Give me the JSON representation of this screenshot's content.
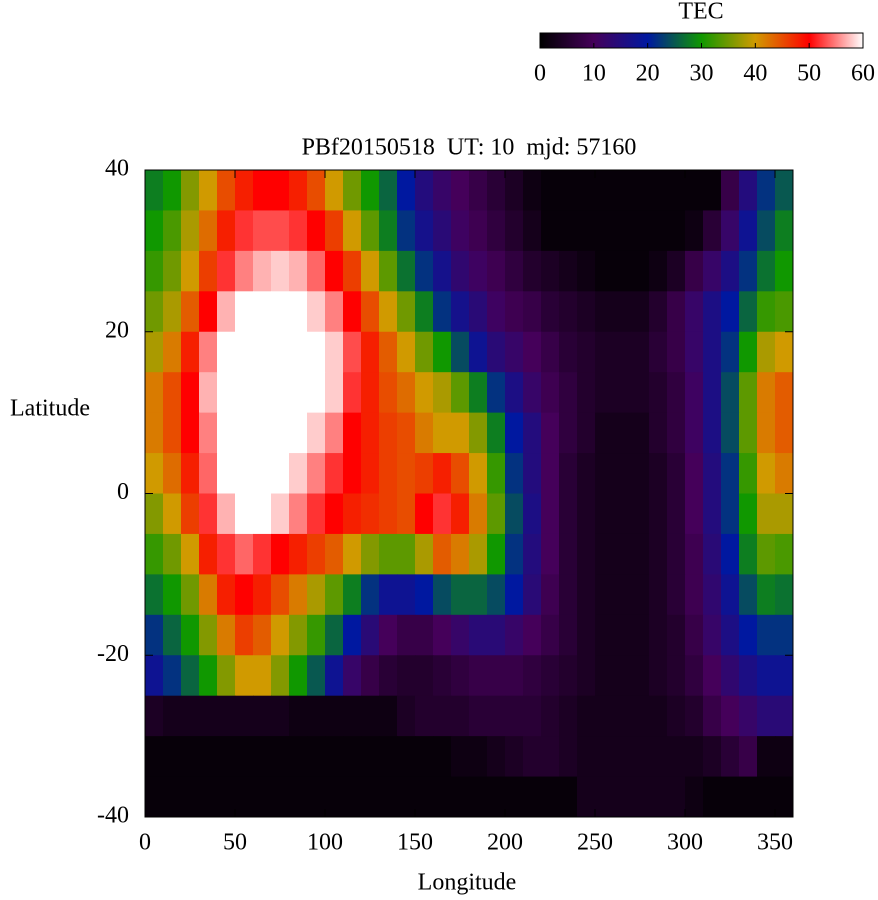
{
  "chart_data": {
    "type": "heatmap",
    "title": "PBf20150518  UT: 10  mjd: 57160",
    "xlabel": "Longitude",
    "ylabel": "Latitude",
    "colorbar_label": "TEC",
    "xlim": [
      0,
      360
    ],
    "xticks": [
      0,
      50,
      100,
      150,
      200,
      250,
      300,
      350
    ],
    "ylim": [
      -40,
      40
    ],
    "yticks": [
      -40,
      -20,
      0,
      20,
      40
    ],
    "zlim": [
      0,
      60
    ],
    "zticks": [
      0,
      10,
      20,
      30,
      40,
      50,
      60
    ],
    "colormap": [
      "#000000",
      "#45005a",
      "#0018a0",
      "#109800",
      "#d09a00",
      "#ff0000",
      "#ffffff"
    ],
    "x": [
      5,
      15,
      25,
      35,
      45,
      55,
      65,
      75,
      85,
      95,
      105,
      115,
      125,
      135,
      145,
      155,
      165,
      175,
      185,
      195,
      205,
      215,
      225,
      235,
      245,
      255,
      265,
      275,
      285,
      295,
      305,
      315,
      325,
      335,
      345,
      355
    ],
    "y": [
      37.5,
      32.5,
      27.5,
      22.5,
      17.5,
      12.5,
      7.5,
      2.5,
      -2.5,
      -7.5,
      -12.5,
      -17.5,
      -22.5,
      -27.5,
      -32.5,
      -37.5
    ],
    "z": [
      [
        28,
        30,
        36,
        40,
        45,
        48,
        50,
        50,
        48,
        45,
        40,
        35,
        30,
        26,
        20,
        15,
        12,
        10,
        8,
        6,
        4,
        2,
        1,
        1,
        1,
        1,
        1,
        1,
        1,
        1,
        1,
        1,
        8,
        15,
        22,
        25
      ],
      [
        30,
        33,
        38,
        43,
        48,
        52,
        53,
        53,
        52,
        50,
        46,
        40,
        34,
        28,
        22,
        17,
        14,
        11,
        9,
        7,
        5,
        3,
        1,
        1,
        1,
        1,
        1,
        1,
        1,
        1,
        2,
        6,
        12,
        18,
        24,
        28
      ],
      [
        32,
        35,
        40,
        46,
        52,
        55,
        57,
        58,
        57,
        54,
        50,
        46,
        40,
        34,
        27,
        22,
        17,
        13,
        11,
        9,
        7,
        5,
        4,
        3,
        2,
        1,
        1,
        1,
        2,
        4,
        8,
        12,
        16,
        22,
        27,
        30
      ],
      [
        35,
        38,
        44,
        50,
        57,
        60,
        60,
        60,
        60,
        58,
        55,
        50,
        45,
        40,
        35,
        28,
        22,
        17,
        14,
        11,
        9,
        8,
        6,
        5,
        4,
        3,
        3,
        3,
        5,
        8,
        12,
        16,
        20,
        26,
        32,
        33
      ],
      [
        38,
        42,
        48,
        55,
        60,
        60,
        60,
        60,
        60,
        60,
        58,
        53,
        48,
        44,
        40,
        35,
        30,
        24,
        18,
        14,
        12,
        10,
        8,
        6,
        5,
        4,
        4,
        4,
        6,
        8,
        12,
        16,
        22,
        30,
        38,
        40
      ],
      [
        42,
        45,
        50,
        57,
        60,
        60,
        60,
        60,
        60,
        60,
        58,
        52,
        48,
        45,
        43,
        40,
        38,
        34,
        28,
        22,
        16,
        12,
        9,
        7,
        5,
        4,
        4,
        4,
        5,
        7,
        11,
        16,
        24,
        34,
        42,
        44
      ],
      [
        42,
        45,
        50,
        55,
        60,
        60,
        60,
        60,
        60,
        58,
        55,
        50,
        48,
        46,
        45,
        42,
        40,
        40,
        36,
        28,
        20,
        15,
        10,
        7,
        5,
        3,
        3,
        3,
        5,
        7,
        11,
        16,
        24,
        34,
        42,
        44
      ],
      [
        40,
        43,
        48,
        54,
        60,
        60,
        60,
        60,
        58,
        55,
        52,
        50,
        48,
        46,
        45,
        46,
        48,
        45,
        40,
        32,
        22,
        15,
        10,
        6,
        4,
        3,
        3,
        3,
        4,
        6,
        10,
        15,
        22,
        32,
        40,
        42
      ],
      [
        36,
        40,
        46,
        52,
        57,
        60,
        60,
        58,
        55,
        52,
        50,
        48,
        47,
        46,
        45,
        50,
        52,
        48,
        42,
        34,
        24,
        16,
        10,
        6,
        4,
        3,
        3,
        3,
        4,
        6,
        10,
        15,
        22,
        30,
        38,
        38
      ],
      [
        32,
        35,
        40,
        48,
        52,
        54,
        52,
        50,
        48,
        46,
        44,
        40,
        36,
        34,
        34,
        38,
        44,
        42,
        38,
        30,
        22,
        15,
        10,
        6,
        4,
        3,
        3,
        3,
        4,
        6,
        9,
        14,
        20,
        28,
        34,
        33
      ],
      [
        27,
        30,
        35,
        42,
        48,
        50,
        48,
        45,
        42,
        38,
        34,
        28,
        22,
        18,
        18,
        20,
        24,
        26,
        26,
        24,
        20,
        14,
        9,
        6,
        4,
        3,
        3,
        3,
        4,
        6,
        9,
        13,
        18,
        24,
        28,
        27
      ],
      [
        22,
        26,
        30,
        36,
        42,
        46,
        44,
        40,
        36,
        32,
        26,
        20,
        14,
        10,
        8,
        8,
        10,
        12,
        14,
        14,
        12,
        10,
        8,
        6,
        4,
        3,
        3,
        3,
        4,
        5,
        8,
        12,
        16,
        20,
        22,
        22
      ],
      [
        18,
        22,
        26,
        30,
        36,
        40,
        40,
        36,
        30,
        25,
        18,
        12,
        8,
        6,
        5,
        5,
        6,
        7,
        8,
        8,
        8,
        7,
        6,
        5,
        4,
        3,
        3,
        3,
        4,
        5,
        7,
        10,
        13,
        16,
        18,
        18
      ],
      [
        4,
        3,
        3,
        3,
        3,
        3,
        3,
        3,
        2,
        2,
        2,
        2,
        2,
        2,
        4,
        5,
        5,
        5,
        6,
        6,
        6,
        6,
        5,
        4,
        3,
        3,
        3,
        3,
        3,
        4,
        5,
        8,
        10,
        12,
        14,
        14
      ],
      [
        1,
        1,
        1,
        1,
        1,
        1,
        1,
        1,
        1,
        1,
        1,
        1,
        1,
        1,
        1,
        1,
        1,
        2,
        2,
        3,
        4,
        5,
        5,
        4,
        3,
        3,
        3,
        3,
        3,
        3,
        3,
        4,
        6,
        8,
        2,
        2
      ],
      [
        1,
        1,
        1,
        1,
        1,
        1,
        1,
        1,
        1,
        1,
        1,
        1,
        1,
        1,
        1,
        1,
        1,
        1,
        1,
        1,
        1,
        1,
        1,
        1,
        3,
        3,
        3,
        3,
        3,
        3,
        2,
        1,
        1,
        1,
        1,
        1
      ]
    ]
  }
}
